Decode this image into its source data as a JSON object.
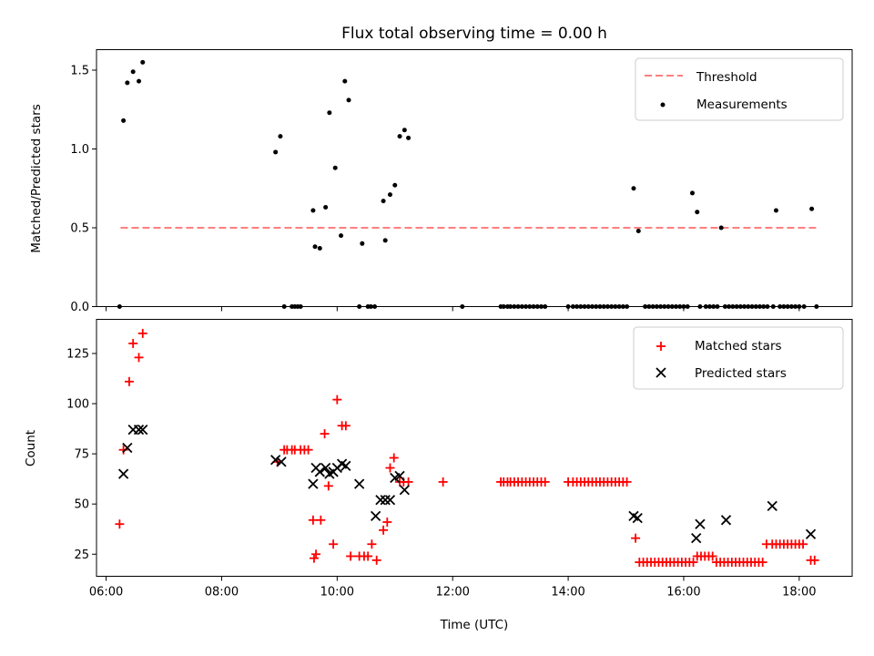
{
  "chart_data": [
    {
      "type": "scatter",
      "title": "Flux total observing time = 0.00 h",
      "xlabel": "",
      "ylabel": "Matched/Predicted stars",
      "xlim": [
        "05:50",
        "18:55"
      ],
      "ylim": [
        0,
        1.63
      ],
      "yticks": [
        0.0,
        0.5,
        1.0,
        1.5
      ],
      "ytick_labels": [
        "0.0",
        "0.5",
        "1.0",
        "1.5"
      ],
      "xticks": [
        "06:00",
        "08:00",
        "10:00",
        "12:00",
        "14:00",
        "16:00",
        "18:00"
      ],
      "grid": false,
      "legend_position": "top-right",
      "series": [
        {
          "name": "Threshold",
          "kind": "dashed-line",
          "color": "#ff7f7f",
          "x": [
            "06:15",
            "18:20"
          ],
          "y": [
            0.5,
            0.5
          ]
        },
        {
          "name": "Measurements",
          "kind": "dot",
          "color": "#000000",
          "x": [
            "06:14",
            "06:18",
            "06:22",
            "06:28",
            "06:34",
            "06:38",
            "08:56",
            "09:01",
            "09:05",
            "09:13",
            "09:16",
            "09:19",
            "09:22",
            "09:35",
            "09:37",
            "09:42",
            "09:48",
            "09:52",
            "09:58",
            "10:04",
            "10:08",
            "10:12",
            "10:23",
            "10:26",
            "10:32",
            "10:35",
            "10:39",
            "10:48",
            "10:50",
            "10:55",
            "11:00",
            "11:05",
            "11:10",
            "11:14",
            "12:10",
            "12:50",
            "12:53",
            "12:57",
            "13:00",
            "13:04",
            "13:08",
            "13:12",
            "13:16",
            "13:20",
            "13:24",
            "13:28",
            "13:32",
            "13:36",
            "14:00",
            "14:05",
            "14:09",
            "14:13",
            "14:17",
            "14:21",
            "14:25",
            "14:29",
            "14:33",
            "14:37",
            "14:41",
            "14:45",
            "14:49",
            "14:53",
            "14:57",
            "15:01",
            "15:08",
            "15:13",
            "15:20",
            "15:24",
            "15:28",
            "15:32",
            "15:36",
            "15:40",
            "15:44",
            "15:48",
            "15:52",
            "15:56",
            "16:00",
            "16:04",
            "16:09",
            "16:14",
            "16:17",
            "16:23",
            "16:27",
            "16:31",
            "16:35",
            "16:39",
            "16:43",
            "16:47",
            "16:51",
            "16:55",
            "16:59",
            "17:03",
            "17:07",
            "17:11",
            "17:15",
            "17:19",
            "17:23",
            "17:27",
            "17:33",
            "17:36",
            "17:40",
            "17:44",
            "17:48",
            "17:52",
            "17:56",
            "18:00",
            "18:05",
            "18:13",
            "18:18"
          ],
          "y": [
            0.0,
            1.18,
            1.42,
            1.49,
            1.43,
            1.55,
            0.98,
            1.08,
            0.0,
            0.0,
            0.0,
            0.0,
            0.0,
            0.61,
            0.38,
            0.37,
            0.63,
            1.23,
            0.88,
            0.45,
            1.43,
            1.31,
            0.0,
            0.4,
            0.0,
            0.0,
            0.0,
            0.67,
            0.42,
            0.71,
            0.77,
            1.08,
            1.12,
            1.07,
            0.0,
            0.0,
            0.0,
            0.0,
            0.0,
            0.0,
            0.0,
            0.0,
            0.0,
            0.0,
            0.0,
            0.0,
            0.0,
            0.0,
            0.0,
            0.0,
            0.0,
            0.0,
            0.0,
            0.0,
            0.0,
            0.0,
            0.0,
            0.0,
            0.0,
            0.0,
            0.0,
            0.0,
            0.0,
            0.0,
            0.75,
            0.48,
            0.0,
            0.0,
            0.0,
            0.0,
            0.0,
            0.0,
            0.0,
            0.0,
            0.0,
            0.0,
            0.0,
            0.0,
            0.72,
            0.6,
            0.0,
            0.0,
            0.0,
            0.0,
            0.0,
            0.5,
            0.0,
            0.0,
            0.0,
            0.0,
            0.0,
            0.0,
            0.0,
            0.0,
            0.0,
            0.0,
            0.0,
            0.0,
            0.0,
            0.61,
            0.0,
            0.0,
            0.0,
            0.0,
            0.0,
            0.0,
            0.0,
            0.62,
            0.0
          ]
        }
      ]
    },
    {
      "type": "scatter",
      "title": "",
      "xlabel": "Time (UTC)",
      "ylabel": "Count",
      "xlim": [
        "05:50",
        "18:55"
      ],
      "ylim": [
        14,
        142
      ],
      "yticks": [
        25,
        50,
        75,
        100,
        125
      ],
      "ytick_labels": [
        "25",
        "50",
        "75",
        "100",
        "125"
      ],
      "xticks": [
        "06:00",
        "08:00",
        "10:00",
        "12:00",
        "14:00",
        "16:00",
        "18:00"
      ],
      "xtick_labels": [
        "06:00",
        "08:00",
        "10:00",
        "12:00",
        "14:00",
        "16:00",
        "18:00"
      ],
      "grid": false,
      "legend_position": "top-right",
      "series": [
        {
          "name": "Matched stars",
          "kind": "plus",
          "color": "#ff0000",
          "x": [
            "06:14",
            "06:18",
            "06:24",
            "06:28",
            "06:34",
            "06:38",
            "08:58",
            "09:05",
            "09:08",
            "09:13",
            "09:16",
            "09:22",
            "09:26",
            "09:30",
            "09:35",
            "09:36",
            "09:38",
            "09:43",
            "09:47",
            "09:51",
            "09:56",
            "10:00",
            "10:05",
            "10:09",
            "10:14",
            "10:23",
            "10:28",
            "10:32",
            "10:36",
            "10:41",
            "10:48",
            "10:52",
            "10:55",
            "10:59",
            "11:05",
            "11:09",
            "11:14",
            "11:50",
            "12:50",
            "12:53",
            "12:57",
            "13:00",
            "13:04",
            "13:08",
            "13:12",
            "13:16",
            "13:20",
            "13:24",
            "13:28",
            "13:32",
            "13:36",
            "14:00",
            "14:05",
            "14:09",
            "14:13",
            "14:17",
            "14:21",
            "14:25",
            "14:29",
            "14:33",
            "14:37",
            "14:41",
            "14:45",
            "14:49",
            "14:53",
            "14:57",
            "15:01",
            "15:10",
            "15:14",
            "15:18",
            "15:22",
            "15:26",
            "15:30",
            "15:34",
            "15:38",
            "15:42",
            "15:46",
            "15:50",
            "15:54",
            "15:58",
            "16:02",
            "16:06",
            "16:10",
            "16:14",
            "16:18",
            "16:22",
            "16:26",
            "16:30",
            "16:34",
            "16:38",
            "16:42",
            "16:46",
            "16:50",
            "16:54",
            "16:58",
            "17:02",
            "17:06",
            "17:10",
            "17:14",
            "17:18",
            "17:22",
            "17:26",
            "17:32",
            "17:36",
            "17:40",
            "17:44",
            "17:48",
            "17:52",
            "17:56",
            "18:00",
            "18:04",
            "18:12",
            "18:16"
          ],
          "y": [
            40,
            77,
            111,
            130,
            123,
            135,
            71,
            77,
            77,
            77,
            77,
            77,
            77,
            77,
            42,
            23,
            25,
            42,
            85,
            59,
            30,
            102,
            89,
            89,
            24,
            24,
            24,
            24,
            30,
            22,
            37,
            41,
            68,
            73,
            61,
            61,
            61,
            61,
            61,
            61,
            61,
            61,
            61,
            61,
            61,
            61,
            61,
            61,
            61,
            61,
            61,
            61,
            61,
            61,
            61,
            61,
            61,
            61,
            61,
            61,
            61,
            61,
            61,
            61,
            61,
            61,
            61,
            33,
            21,
            21,
            21,
            21,
            21,
            21,
            21,
            21,
            21,
            21,
            21,
            21,
            21,
            21,
            21,
            24,
            24,
            24,
            24,
            24,
            21,
            21,
            21,
            21,
            21,
            21,
            21,
            21,
            21,
            21,
            21,
            21,
            21,
            30,
            30,
            30,
            30,
            30,
            30,
            30,
            30,
            30,
            30,
            22,
            22
          ]
        },
        {
          "name": "Predicted stars",
          "kind": "x",
          "color": "#000000",
          "x": [
            "06:18",
            "06:22",
            "06:28",
            "06:34",
            "06:38",
            "08:56",
            "09:02",
            "09:35",
            "09:38",
            "09:42",
            "09:48",
            "09:52",
            "09:56",
            "10:00",
            "10:05",
            "10:09",
            "10:23",
            "10:40",
            "10:45",
            "10:50",
            "10:55",
            "11:00",
            "11:05",
            "11:10",
            "15:08",
            "15:12",
            "16:13",
            "16:17",
            "16:44",
            "17:32",
            "18:12"
          ],
          "y": [
            65,
            78,
            87,
            87,
            87,
            72,
            71,
            60,
            68,
            66,
            68,
            65,
            66,
            68,
            70,
            69,
            60,
            44,
            52,
            52,
            52,
            63,
            64,
            57,
            44,
            43,
            33,
            40,
            42,
            49,
            35
          ]
        }
      ]
    }
  ]
}
